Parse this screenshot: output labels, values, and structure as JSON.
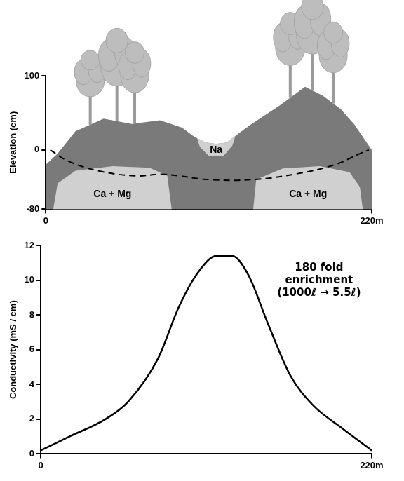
{
  "chart_data": [
    {
      "type": "area",
      "y_label": "Elevation (cm)",
      "xlim": [
        0,
        220
      ],
      "xticks": [
        0,
        {
          "value": 220,
          "label": "220m"
        }
      ],
      "ylim": [
        -80,
        100
      ],
      "yticks": [
        -80,
        0,
        100
      ],
      "grid": false,
      "regions": [
        {
          "color": "#7a7a7a",
          "points": [
            [
              0,
              -20
            ],
            [
              8,
              -5
            ],
            [
              20,
              25
            ],
            [
              39,
              42
            ],
            [
              58,
              35
            ],
            [
              77,
              40
            ],
            [
              92,
              30
            ],
            [
              100,
              18
            ],
            [
              108,
              10
            ],
            [
              115,
              8
            ],
            [
              122,
              10
            ],
            [
              130,
              22
            ],
            [
              139,
              35
            ],
            [
              158,
              60
            ],
            [
              175,
              85
            ],
            [
              187,
              73
            ],
            [
              199,
              55
            ],
            [
              208,
              35
            ],
            [
              220,
              0
            ],
            [
              220,
              -80
            ],
            [
              0,
              -80
            ]
          ]
        },
        {
          "label": "Ca + Mg",
          "label_at": [
            45,
            -60
          ],
          "color": "#d0d0d0",
          "points": [
            [
              5,
              -80
            ],
            [
              8,
              -45
            ],
            [
              20,
              -28
            ],
            [
              45,
              -22
            ],
            [
              70,
              -24
            ],
            [
              82,
              -35
            ],
            [
              85,
              -80
            ]
          ]
        },
        {
          "label": "Ca + Mg",
          "label_at": [
            177,
            -60
          ],
          "color": "#d0d0d0",
          "points": [
            [
              140,
              -80
            ],
            [
              142,
              -40
            ],
            [
              160,
              -25
            ],
            [
              185,
              -22
            ],
            [
              205,
              -30
            ],
            [
              212,
              -50
            ],
            [
              214,
              -80
            ]
          ]
        },
        {
          "label": "Na",
          "label_at": [
            115,
            0
          ],
          "color": "#d0d0d0",
          "points": [
            [
              102,
              16
            ],
            [
              108,
              10
            ],
            [
              115,
              8
            ],
            [
              122,
              10
            ],
            [
              128,
              19
            ],
            [
              126,
              6
            ],
            [
              120,
              -8
            ],
            [
              110,
              -8
            ],
            [
              104,
              4
            ]
          ]
        }
      ],
      "series": [
        {
          "color": "#000000",
          "line_style": "dashed",
          "x": [
            3,
            15,
            35,
            60,
            80,
            110,
            140,
            170,
            195,
            212,
            218
          ],
          "y": [
            0,
            -15,
            -28,
            -35,
            -33,
            -40,
            -40,
            -32,
            -20,
            -5,
            0
          ]
        }
      ]
    },
    {
      "type": "line",
      "y_label": "Conductivity (mS / cm)",
      "xlim": [
        0,
        220
      ],
      "xticks": [
        0,
        {
          "value": 220,
          "label": "220m"
        }
      ],
      "ylim": [
        0,
        12
      ],
      "yticks": [
        0,
        2,
        4,
        6,
        8,
        10,
        12
      ],
      "grid": false,
      "color": "#000000",
      "x": [
        0,
        19,
        43,
        58,
        78,
        92,
        105,
        117,
        127,
        138,
        151,
        166,
        181,
        200,
        220
      ],
      "values": [
        0.2,
        1.0,
        2.0,
        3.0,
        5.5,
        8.5,
        10.5,
        11.4,
        11.4,
        10.3,
        7.5,
        4.5,
        2.8,
        1.5,
        0.2
      ],
      "annotations": [
        {
          "lines": [
            "180 fold",
            "enrichment",
            "(1000ℓ → 5.5ℓ)"
          ],
          "x": 185,
          "y": 11
        }
      ]
    }
  ]
}
